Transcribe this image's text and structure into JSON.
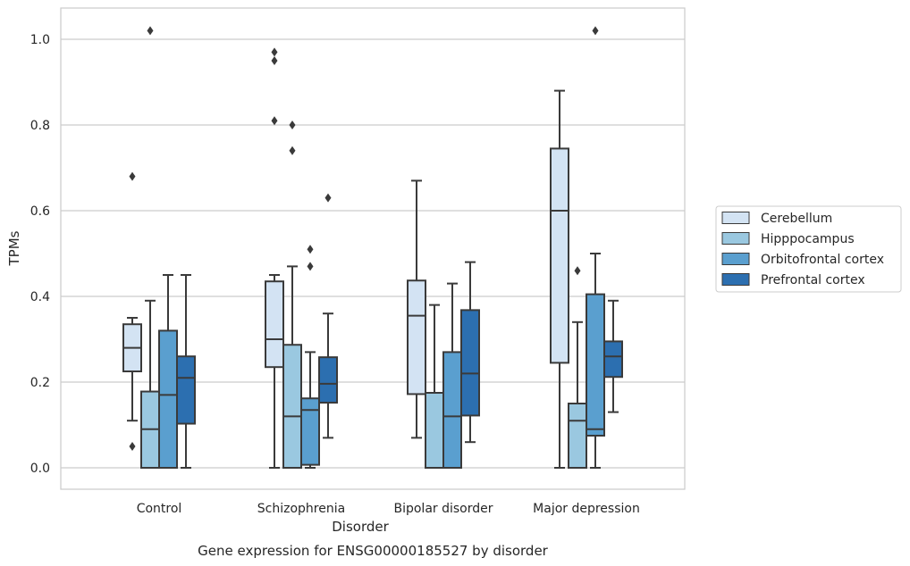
{
  "caption": "Gene expression for ENSG00000185527 by disorder",
  "chart_data": {
    "type": "box",
    "title": "",
    "xlabel": "Disorder",
    "ylabel": "TPMs",
    "ylim": [
      -0.05,
      1.07
    ],
    "yticks": [
      0.0,
      0.2,
      0.4,
      0.6,
      0.8,
      1.0
    ],
    "ytick_labels": [
      "0.0",
      "0.2",
      "0.4",
      "0.6",
      "0.8",
      "1.0"
    ],
    "grid": "horizontal",
    "legend_position": "right",
    "categories": [
      "Control",
      "Schizophrenia",
      "Bipolar disorder",
      "Major depression"
    ],
    "series": [
      {
        "name": "Cerebellum",
        "color": "#d3e3f3",
        "boxes": [
          {
            "whislo": 0.11,
            "q1": 0.225,
            "med": 0.28,
            "q3": 0.335,
            "whishi": 0.35,
            "fliers": [
              0.68,
              0.05
            ]
          },
          {
            "whislo": 0.0,
            "q1": 0.235,
            "med": 0.3,
            "q3": 0.435,
            "whishi": 0.45,
            "fliers": [
              0.97,
              0.95,
              0.81
            ]
          },
          {
            "whislo": 0.07,
            "q1": 0.172,
            "med": 0.355,
            "q3": 0.437,
            "whishi": 0.67,
            "fliers": []
          },
          {
            "whislo": 0.0,
            "q1": 0.245,
            "med": 0.6,
            "q3": 0.745,
            "whishi": 0.88,
            "fliers": []
          }
        ]
      },
      {
        "name": "Hipppocampus",
        "color": "#9ac8e0",
        "boxes": [
          {
            "whislo": 0.0,
            "q1": 0.0,
            "med": 0.09,
            "q3": 0.178,
            "whishi": 0.39,
            "fliers": [
              1.02
            ]
          },
          {
            "whislo": 0.0,
            "q1": 0.0,
            "med": 0.12,
            "q3": 0.287,
            "whishi": 0.47,
            "fliers": [
              0.8,
              0.74
            ]
          },
          {
            "whislo": 0.0,
            "q1": 0.0,
            "med": 0.0,
            "q3": 0.175,
            "whishi": 0.38,
            "fliers": []
          },
          {
            "whislo": 0.0,
            "q1": 0.0,
            "med": 0.11,
            "q3": 0.15,
            "whishi": 0.34,
            "fliers": [
              0.46
            ]
          }
        ]
      },
      {
        "name": "Orbitofrontal cortex",
        "color": "#5a9fcf",
        "boxes": [
          {
            "whislo": 0.0,
            "q1": 0.0,
            "med": 0.17,
            "q3": 0.32,
            "whishi": 0.45,
            "fliers": []
          },
          {
            "whislo": 0.0,
            "q1": 0.007,
            "med": 0.135,
            "q3": 0.162,
            "whishi": 0.27,
            "fliers": [
              0.51,
              0.47
            ]
          },
          {
            "whislo": 0.0,
            "q1": 0.0,
            "med": 0.12,
            "q3": 0.27,
            "whishi": 0.43,
            "fliers": []
          },
          {
            "whislo": 0.0,
            "q1": 0.075,
            "med": 0.09,
            "q3": 0.405,
            "whishi": 0.5,
            "fliers": [
              1.02
            ]
          }
        ]
      },
      {
        "name": "Prefrontal cortex",
        "color": "#2c6fb0",
        "boxes": [
          {
            "whislo": 0.0,
            "q1": 0.103,
            "med": 0.21,
            "q3": 0.26,
            "whishi": 0.45,
            "fliers": []
          },
          {
            "whislo": 0.07,
            "q1": 0.152,
            "med": 0.196,
            "q3": 0.258,
            "whishi": 0.36,
            "fliers": [
              0.63
            ]
          },
          {
            "whislo": 0.06,
            "q1": 0.122,
            "med": 0.22,
            "q3": 0.368,
            "whishi": 0.48,
            "fliers": []
          },
          {
            "whislo": 0.13,
            "q1": 0.212,
            "med": 0.26,
            "q3": 0.295,
            "whishi": 0.39,
            "fliers": []
          }
        ]
      }
    ]
  }
}
